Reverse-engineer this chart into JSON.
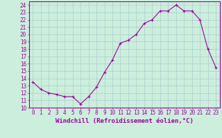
{
  "x": [
    0,
    1,
    2,
    3,
    4,
    5,
    6,
    7,
    8,
    9,
    10,
    11,
    12,
    13,
    14,
    15,
    16,
    17,
    18,
    19,
    20,
    21,
    22,
    23
  ],
  "y": [
    13.5,
    12.5,
    12.0,
    11.8,
    11.5,
    11.5,
    10.5,
    11.5,
    12.8,
    14.8,
    16.5,
    18.8,
    19.2,
    20.0,
    21.5,
    22.0,
    23.2,
    23.2,
    24.0,
    23.2,
    23.2,
    22.0,
    18.0,
    15.5
  ],
  "line_color": "#990099",
  "marker": "+",
  "bg_color": "#cceedd",
  "grid_color": "#aacccc",
  "xlabel": "Windchill (Refroidissement éolien,°C)",
  "xlabel_color": "#990099",
  "xlim": [
    -0.5,
    23.5
  ],
  "ylim": [
    10,
    24.5
  ],
  "yticks": [
    10,
    11,
    12,
    13,
    14,
    15,
    16,
    17,
    18,
    19,
    20,
    21,
    22,
    23,
    24
  ],
  "xticks": [
    0,
    1,
    2,
    3,
    4,
    5,
    6,
    7,
    8,
    9,
    10,
    11,
    12,
    13,
    14,
    15,
    16,
    17,
    18,
    19,
    20,
    21,
    22,
    23
  ],
  "tick_fontsize": 5.5,
  "xlabel_fontsize": 6.5,
  "tick_color": "#990099",
  "axis_color": "#990099",
  "linewidth": 0.8,
  "markersize": 3.5,
  "markeredgewidth": 0.8
}
